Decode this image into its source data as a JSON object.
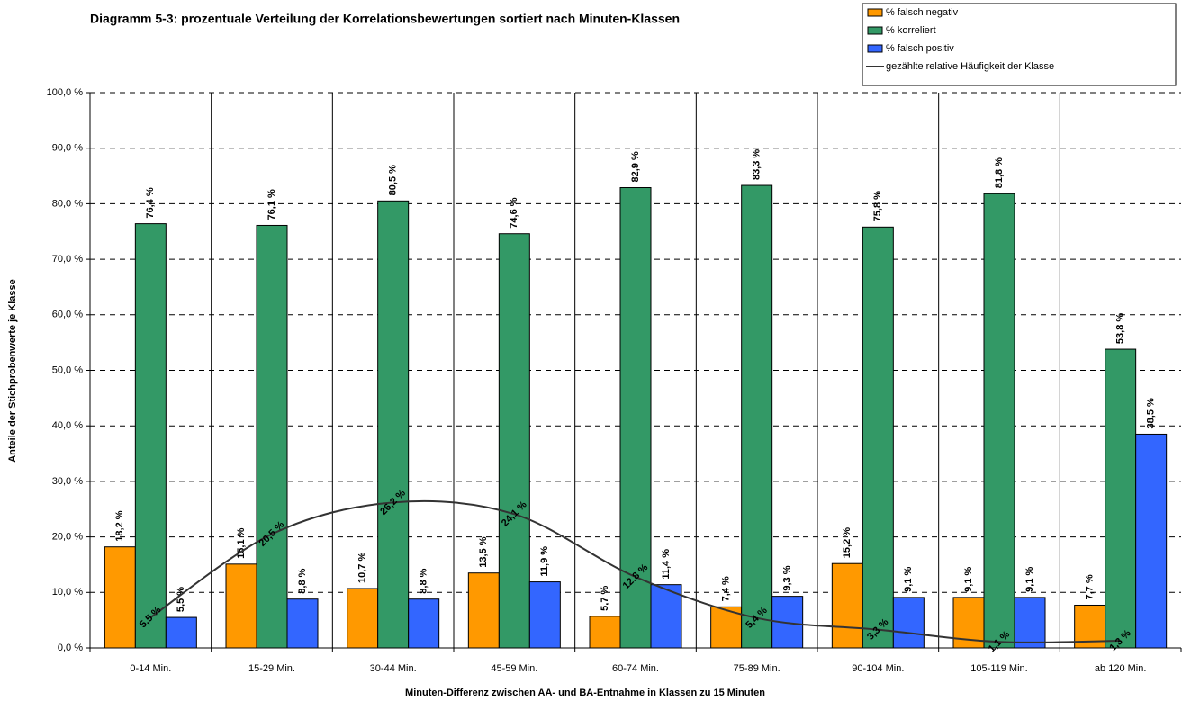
{
  "chart_data": {
    "type": "bar",
    "title": "Diagramm 5-3: prozentuale Verteilung der Korrelationsbewertungen sortiert nach Minuten-Klassen",
    "x_label": "Minuten-Differenz zwischen AA- und BA-Entnahme in Klassen zu 15 Minuten",
    "y_label": "Anteile der Stichprobenwerte je Klasse",
    "categories": [
      "0-14 Min.",
      "15-29 Min.",
      "30-44 Min.",
      "45-59 Min.",
      "60-74 Min.",
      "75-89 Min.",
      "90-104 Min.",
      "105-119 Min.",
      "ab 120 Min."
    ],
    "series": [
      {
        "name": "% falsch negativ",
        "type": "bar",
        "color": "#ff9900",
        "label_color": "#f26b1d",
        "values": [
          18.2,
          15.1,
          10.7,
          13.5,
          5.7,
          7.4,
          15.2,
          9.1,
          7.7
        ],
        "value_labels": [
          "18,2 %",
          "15,1 %",
          "10,7 %",
          "13,5 %",
          "5,7 %",
          "7,4 %",
          "15,2 %",
          "9,1 %",
          "7,7 %"
        ]
      },
      {
        "name": "% korreliert",
        "type": "bar",
        "color": "#339966",
        "label_color": "#339966",
        "values": [
          76.4,
          76.1,
          80.5,
          74.6,
          82.9,
          83.3,
          75.8,
          81.8,
          53.8
        ],
        "value_labels": [
          "76,4 %",
          "76,1 %",
          "80,5 %",
          "74,6 %",
          "82,9 %",
          "83,3 %",
          "75,8 %",
          "81,8 %",
          "53,8 %"
        ]
      },
      {
        "name": "% falsch positiv",
        "type": "bar",
        "color": "#3366ff",
        "label_color": "#3366ff",
        "values": [
          5.5,
          8.8,
          8.8,
          11.9,
          11.4,
          9.3,
          9.1,
          9.1,
          38.5
        ],
        "value_labels": [
          "5,5 %",
          "8,8 %",
          "8,8 %",
          "11,9 %",
          "11,4 %",
          "9,3 %",
          "9,1 %",
          "9,1 %",
          "38,5 %"
        ]
      },
      {
        "name": "gezählte relative Häufigkeit der Klasse",
        "type": "line",
        "color": "#333333",
        "label_color": "#333333",
        "values": [
          5.5,
          20.5,
          26.2,
          24.1,
          12.8,
          5.4,
          3.3,
          1.1,
          1.3
        ],
        "value_labels": [
          "5,5 %",
          "20,5 %",
          "26,2 %",
          "24,1 %",
          "12,8 %",
          "5,4 %",
          "3,3 %",
          "1,1 %",
          "1,3 %"
        ]
      }
    ],
    "ylim": [
      0,
      100
    ],
    "yticks": [
      {
        "value": 0,
        "label": "0,0 %"
      },
      {
        "value": 10,
        "label": "10,0 %"
      },
      {
        "value": 20,
        "label": "20,0 %"
      },
      {
        "value": 30,
        "label": "30,0 %"
      },
      {
        "value": 40,
        "label": "40,0 %"
      },
      {
        "value": 50,
        "label": "50,0 %"
      },
      {
        "value": 60,
        "label": "60,0 %"
      },
      {
        "value": 70,
        "label": "70,0 %"
      },
      {
        "value": 80,
        "label": "80,0 %"
      },
      {
        "value": 90,
        "label": "90,0 %"
      },
      {
        "value": 100,
        "label": "100,0 %"
      }
    ],
    "grid": true,
    "legend": "top-right"
  }
}
